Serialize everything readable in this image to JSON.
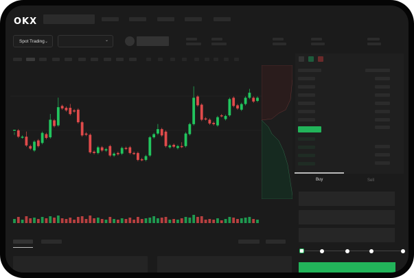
{
  "header": {
    "logo": "OKX"
  },
  "toolbar": {
    "market_selector": "Spot Trading",
    "pair_selector": ""
  },
  "order_form": {
    "tabs": [
      {
        "label": "Buy",
        "active": true
      },
      {
        "label": "Sell",
        "active": false
      }
    ],
    "slider_percent": 0,
    "submit_color": "#22b45a"
  },
  "colors": {
    "up": "#22c55e",
    "down": "#e04b4b",
    "background": "#1b1b1b"
  },
  "icons": [
    "chevron-down-icon",
    "orderbook-both-icon",
    "orderbook-bids-icon",
    "orderbook-asks-icon"
  ],
  "chart_data": {
    "type": "candlestick",
    "candles": [
      [
        118,
        119,
        113,
        113
      ],
      [
        118,
        108,
        118,
        108
      ],
      [
        107,
        108,
        108,
        107
      ],
      [
        108,
        94,
        114,
        94
      ],
      [
        93,
        89,
        93,
        89
      ],
      [
        86,
        100,
        100,
        86
      ],
      [
        102,
        93,
        102,
        93
      ],
      [
        98,
        114,
        114,
        98
      ],
      [
        112,
        106,
        112,
        106
      ],
      [
        107,
        135,
        142,
        107
      ],
      [
        134,
        125,
        134,
        125
      ],
      [
        126,
        155,
        168,
        126
      ],
      [
        157,
        153,
        157,
        153
      ],
      [
        154,
        150,
        154,
        150
      ],
      [
        154,
        144,
        158,
        144
      ],
      [
        150,
        148,
        150,
        148
      ],
      [
        151,
        131,
        151,
        131
      ],
      [
        131,
        110,
        131,
        110
      ],
      [
        113,
        111,
        113,
        111
      ],
      [
        111,
        83,
        111,
        83
      ],
      [
        84,
        82,
        84,
        82
      ],
      [
        82,
        91,
        91,
        82
      ],
      [
        91,
        86,
        91,
        86
      ],
      [
        86,
        88,
        88,
        86
      ],
      [
        93,
        78,
        93,
        78
      ],
      [
        78,
        81,
        81,
        78
      ],
      [
        82,
        80,
        82,
        80
      ],
      [
        81,
        90,
        90,
        81
      ],
      [
        90,
        89,
        90,
        89
      ],
      [
        91,
        82,
        91,
        82
      ],
      [
        82,
        81,
        82,
        81
      ],
      [
        82,
        71,
        82,
        71
      ],
      [
        72,
        71,
        72,
        71
      ],
      [
        71,
        77,
        77,
        71
      ],
      [
        78,
        107,
        107,
        78
      ],
      [
        107,
        112,
        112,
        107
      ],
      [
        113,
        120,
        126,
        113
      ],
      [
        120,
        110,
        120,
        110
      ],
      [
        116,
        93,
        116,
        93
      ],
      [
        91,
        94,
        94,
        91
      ],
      [
        95,
        92,
        95,
        92
      ],
      [
        90,
        93,
        93,
        90
      ],
      [
        93,
        92,
        97,
        92
      ],
      [
        93,
        113,
        113,
        93
      ],
      [
        112,
        128,
        128,
        112
      ],
      [
        128,
        170,
        186,
        128
      ],
      [
        172,
        158,
        172,
        158
      ],
      [
        159,
        135,
        159,
        135
      ],
      [
        137,
        136,
        137,
        136
      ],
      [
        135,
        129,
        135,
        129
      ],
      [
        130,
        128,
        130,
        128
      ],
      [
        126,
        139,
        139,
        126
      ],
      [
        142,
        141,
        142,
        141
      ],
      [
        136,
        141,
        141,
        136
      ],
      [
        142,
        168,
        168,
        142
      ],
      [
        170,
        157,
        170,
        157
      ],
      [
        158,
        153,
        158,
        153
      ],
      [
        151,
        160,
        160,
        151
      ],
      [
        160,
        170,
        170,
        160
      ],
      [
        170,
        178,
        182,
        170
      ],
      [
        170,
        164,
        170,
        164
      ],
      [
        165,
        170,
        170,
        165
      ]
    ],
    "candle_format": [
      "open",
      "close",
      "high",
      "low"
    ],
    "volume": [
      6,
      9,
      5,
      10,
      7,
      8,
      6,
      9,
      7,
      10,
      8,
      11,
      7,
      6,
      8,
      5,
      9,
      10,
      6,
      11,
      7,
      8,
      6,
      5,
      9,
      6,
      5,
      7,
      6,
      8,
      5,
      9,
      6,
      7,
      8,
      10,
      7,
      8,
      9,
      5,
      6,
      5,
      7,
      9,
      8,
      12,
      9,
      10,
      5,
      6,
      5,
      7,
      4,
      6,
      9,
      8,
      6,
      7,
      8,
      9,
      6,
      5
    ],
    "grid": true
  }
}
